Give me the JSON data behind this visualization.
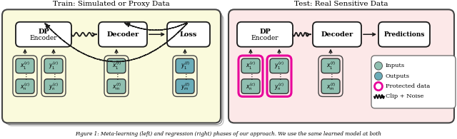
{
  "title_left": "Train: Simulated or Proxy Data",
  "title_right": "Test: Real Sensitive Data",
  "caption": "Figure 1: Meta-learning (left) and regression (right) phases of our approach. We use the same learned model at both",
  "bg_left": "#fafadc",
  "bg_right": "#fce8e8",
  "box_fill": "#ffffff",
  "input_fill_green": "#8fbfb0",
  "input_fill_teal": "#6aacb8",
  "block_edge": "#1a1a1a",
  "arrow_color": "#1a1a1a",
  "pink_outline": "#e8009a",
  "figsize": [
    6.4,
    1.95
  ],
  "dpi": 100
}
